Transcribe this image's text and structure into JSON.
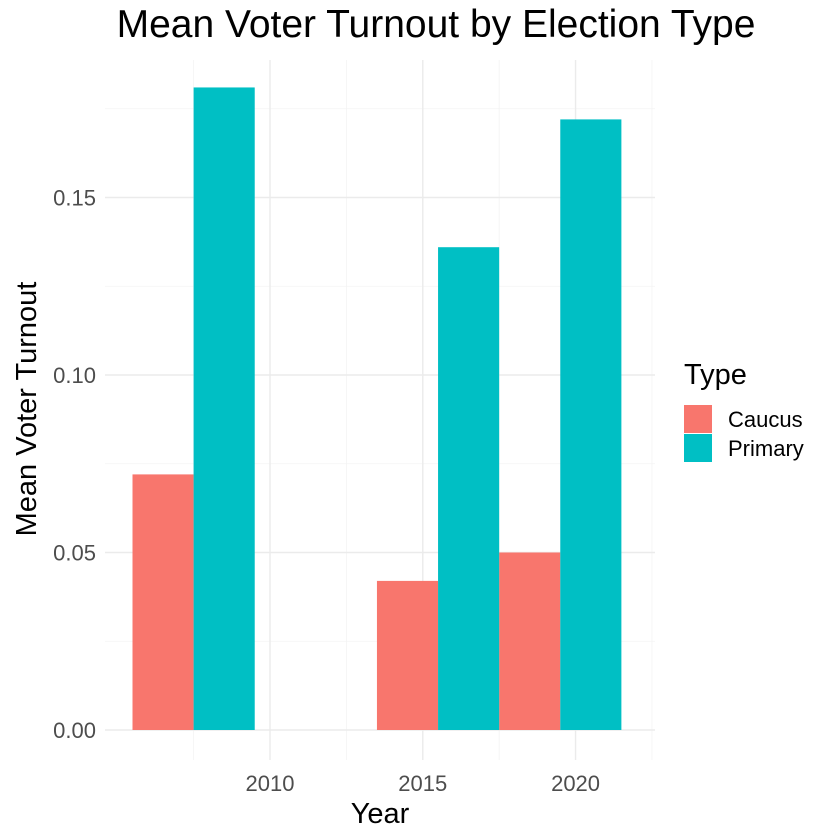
{
  "chart_data": {
    "type": "bar",
    "title": "Mean Voter Turnout by Election Type",
    "xlabel": "Year",
    "ylabel": "Mean Voter Turnout",
    "x_ticks": [
      "2010",
      "2015",
      "2020"
    ],
    "y_ticks": [
      "0.00",
      "0.05",
      "0.10",
      "0.15"
    ],
    "ylim": [
      0,
      0.18
    ],
    "grid": true,
    "legend": {
      "title": "Type",
      "placement": "right"
    },
    "series": [
      {
        "name": "Caucus",
        "color": "#F8766D",
        "points": [
          {
            "x": 2006.5,
            "value": 0.072
          },
          {
            "x": 2014.5,
            "value": 0.042
          },
          {
            "x": 2018.5,
            "value": 0.05
          }
        ]
      },
      {
        "name": "Primary",
        "color": "#00BFC4",
        "points": [
          {
            "x": 2008.5,
            "value": 0.181
          },
          {
            "x": 2016.5,
            "value": 0.136
          },
          {
            "x": 2020.5,
            "value": 0.172
          }
        ]
      }
    ]
  }
}
